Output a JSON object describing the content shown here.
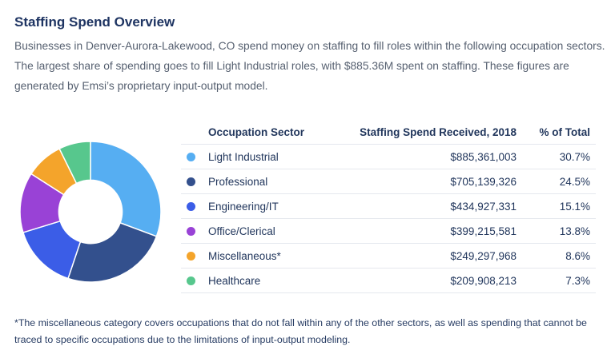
{
  "page": {
    "title": "Staffing Spend Overview",
    "description": "Businesses in Denver-Aurora-Lakewood, CO spend money on staffing to fill roles within the following occupation sectors. The largest share of spending goes to fill Light Industrial roles, with $885.36M spent on staffing. These figures are generated by Emsi’s proprietary input-output model.",
    "footnote": "*The miscellaneous category covers occupations that do not fall within any of the other sectors, as well as spending that cannot be traced to specific occupations due to the limitations of input-output modeling."
  },
  "table": {
    "columns": {
      "sector": "Occupation Sector",
      "spend": "Staffing Spend Received, 2018",
      "pct": "% of Total"
    },
    "rows": [
      {
        "sector": "Light Industrial",
        "spend": "$885,361,003",
        "pct": "30.7%",
        "color": "#56AEF2"
      },
      {
        "sector": "Professional",
        "spend": "$705,139,326",
        "pct": "24.5%",
        "color": "#33508D"
      },
      {
        "sector": "Engineering/IT",
        "spend": "$434,927,331",
        "pct": "15.1%",
        "color": "#3B5DE7"
      },
      {
        "sector": "Office/Clerical",
        "spend": "$399,215,581",
        "pct": "13.8%",
        "color": "#9942D6"
      },
      {
        "sector": "Miscellaneous*",
        "spend": "$249,297,968",
        "pct": "8.6%",
        "color": "#F4A42B"
      },
      {
        "sector": "Healthcare",
        "spend": "$209,908,213",
        "pct": "7.3%",
        "color": "#57C78D"
      }
    ]
  },
  "chart_data": {
    "type": "pie",
    "title": "Staffing Spend Overview",
    "donut": true,
    "inner_radius_ratio": 0.45,
    "start_angle_deg": 0,
    "direction": "clockwise",
    "categories": [
      "Light Industrial",
      "Professional",
      "Engineering/IT",
      "Office/Clerical",
      "Miscellaneous*",
      "Healthcare"
    ],
    "values": [
      885361003,
      705139326,
      434927331,
      399215581,
      249297968,
      209908213
    ],
    "percentages": [
      30.7,
      24.5,
      15.1,
      13.8,
      8.6,
      7.3
    ],
    "colors": [
      "#56AEF2",
      "#33508D",
      "#3B5DE7",
      "#9942D6",
      "#F4A42B",
      "#57C78D"
    ],
    "legend_position": "table-right",
    "segment_border_color": "#ffffff"
  }
}
